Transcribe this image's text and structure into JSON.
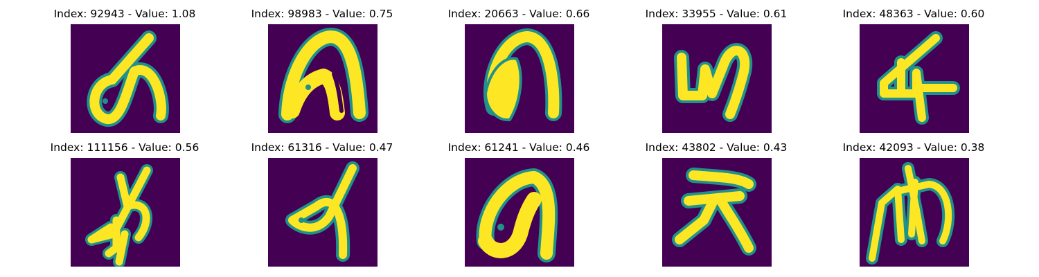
{
  "figure": {
    "panels": [
      {
        "title": "Index: 92943 - Value: 1.08"
      },
      {
        "title": "Index: 98983 - Value: 0.75"
      },
      {
        "title": "Index: 20663 - Value: 0.66"
      },
      {
        "title": "Index: 33955 - Value: 0.61"
      },
      {
        "title": "Index: 48363 - Value: 0.60"
      },
      {
        "title": "Index: 111156 - Value: 0.56"
      },
      {
        "title": "Index: 61316 - Value: 0.47"
      },
      {
        "title": "Index: 61241 - Value: 0.46"
      },
      {
        "title": "Index: 43802 - Value: 0.43"
      },
      {
        "title": "Index: 42093 - Value: 0.38"
      }
    ],
    "colors": {
      "background": "#440154",
      "foreground": "#fde725",
      "edge": "#21918c"
    }
  }
}
